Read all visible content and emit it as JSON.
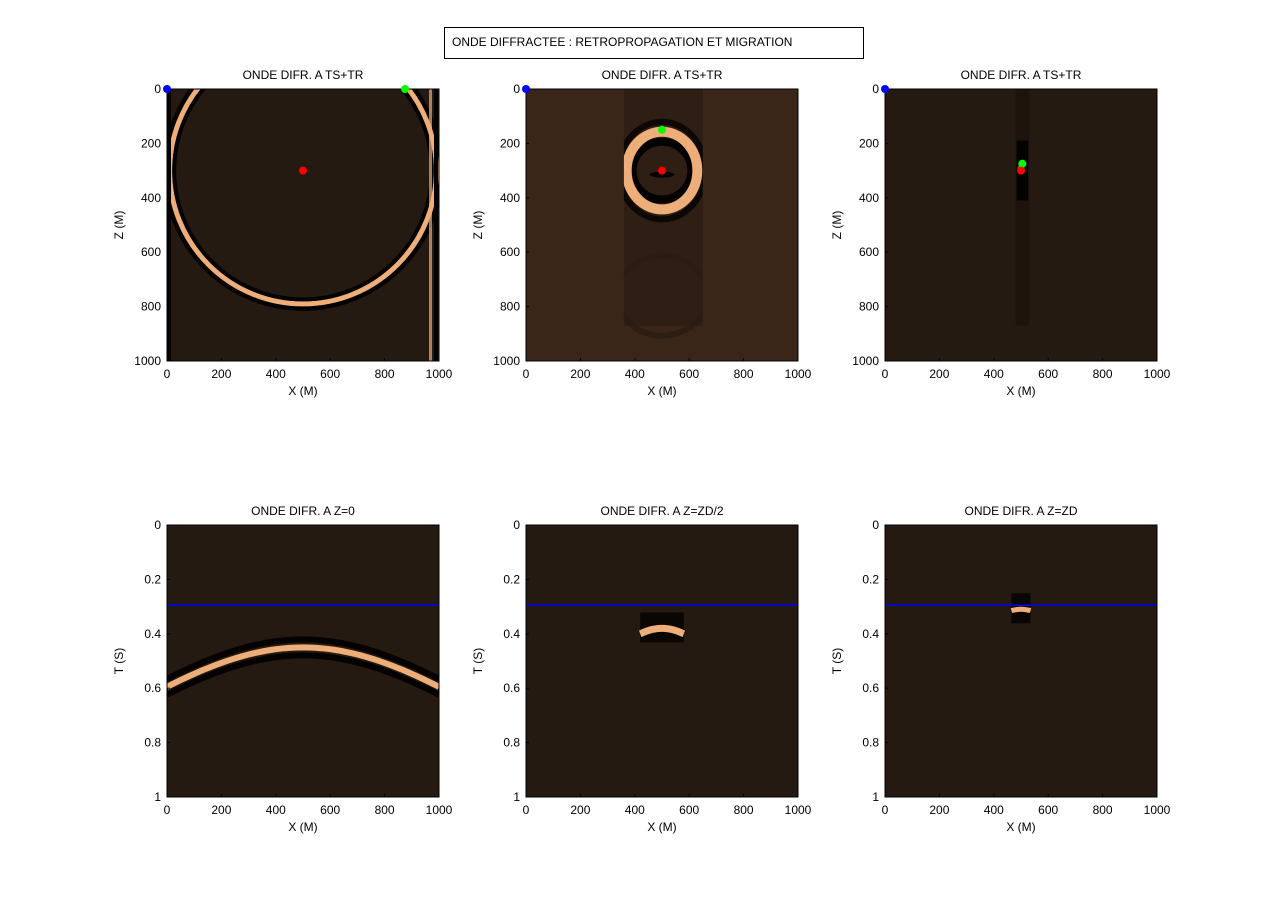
{
  "figure": {
    "title": "ONDE DIFFRACTEE : RETROPROPAGATION ET MIGRATION"
  },
  "colors": {
    "background": "#251A11",
    "top_mid_background": "#3A2619",
    "wave_bright": "#EDAE7A",
    "wave_dark": "#050302",
    "source_marker": "#0000FF",
    "receiver_marker": "#00FF00",
    "diffractor_marker": "#FF0000",
    "time_line": "#0000FF"
  },
  "chart_data": [
    {
      "type": "heatmap",
      "title": "ONDE DIFR. A TS+TR",
      "xlabel": "X (M)",
      "ylabel": "Z (M)",
      "xlim": [
        0,
        1000
      ],
      "ylim": [
        0,
        1000
      ],
      "y_reversed": true,
      "xticks": [
        "0",
        "200",
        "400",
        "600",
        "800",
        "1000"
      ],
      "yticks": [
        "0",
        "200",
        "400",
        "600",
        "800",
        "1000"
      ],
      "wavefront": {
        "shape": "circle",
        "center": [
          500,
          300
        ],
        "radius": 490
      },
      "markers": [
        {
          "name": "source",
          "x": 0,
          "z": 0
        },
        {
          "name": "receiver",
          "x": 875,
          "z": 0
        },
        {
          "name": "diffractor",
          "x": 500,
          "z": 300
        }
      ]
    },
    {
      "type": "heatmap",
      "title": "ONDE DIFR. A TS+TR",
      "xlabel": "X (M)",
      "ylabel": "Z (M)",
      "xlim": [
        0,
        1000
      ],
      "ylim": [
        0,
        1000
      ],
      "y_reversed": true,
      "xticks": [
        "0",
        "200",
        "400",
        "600",
        "800",
        "1000"
      ],
      "yticks": [
        "0",
        "200",
        "400",
        "600",
        "800",
        "1000"
      ],
      "aperture": [
        360,
        650
      ],
      "wavefront": {
        "shape": "ellipse",
        "center": [
          500,
          300
        ],
        "rx": 130,
        "rz": 150
      },
      "markers": [
        {
          "name": "source",
          "x": 0,
          "z": 0
        },
        {
          "name": "receiver",
          "x": 500,
          "z": 150
        },
        {
          "name": "diffractor",
          "x": 500,
          "z": 300
        }
      ]
    },
    {
      "type": "heatmap",
      "title": "ONDE DIFR. A TS+TR",
      "xlabel": "X (M)",
      "ylabel": "Z (M)",
      "xlim": [
        0,
        1000
      ],
      "ylim": [
        0,
        1000
      ],
      "y_reversed": true,
      "xticks": [
        "0",
        "200",
        "400",
        "600",
        "800",
        "1000"
      ],
      "yticks": [
        "0",
        "200",
        "400",
        "600",
        "800",
        "1000"
      ],
      "aperture": [
        480,
        530
      ],
      "wavefront": {
        "shape": "focus",
        "center": [
          500,
          300
        ],
        "rz": 40
      },
      "markers": [
        {
          "name": "source",
          "x": 0,
          "z": 0
        },
        {
          "name": "receiver",
          "x": 505,
          "z": 275
        },
        {
          "name": "diffractor",
          "x": 500,
          "z": 300
        }
      ]
    },
    {
      "type": "heatmap",
      "title": "ONDE DIFR.  A Z=0",
      "xlabel": "X (M)",
      "ylabel": "T (S)",
      "xlim": [
        0,
        1000
      ],
      "ylim": [
        0,
        1
      ],
      "y_reversed": true,
      "xticks": [
        "0",
        "200",
        "400",
        "600",
        "800",
        "1000"
      ],
      "yticks": [
        "0",
        "0.2",
        "0.4",
        "0.6",
        "0.8",
        "1"
      ],
      "hline_t": 0.295,
      "event": {
        "shape": "hyperbola",
        "x0": 500,
        "t0": 0.45,
        "t_edge": 0.595,
        "x_range": [
          0,
          1000
        ]
      }
    },
    {
      "type": "heatmap",
      "title": "ONDE DIFR.  A Z=ZD/2",
      "xlabel": "X (M)",
      "ylabel": "T (S)",
      "xlim": [
        0,
        1000
      ],
      "ylim": [
        0,
        1
      ],
      "y_reversed": true,
      "xticks": [
        "0",
        "200",
        "400",
        "600",
        "800",
        "1000"
      ],
      "yticks": [
        "0",
        "0.2",
        "0.4",
        "0.6",
        "0.8",
        "1"
      ],
      "hline_t": 0.295,
      "event": {
        "shape": "hyperbola",
        "x0": 500,
        "t0": 0.38,
        "t_edge": 0.4,
        "x_range": [
          420,
          580
        ]
      }
    },
    {
      "type": "heatmap",
      "title": "ONDE DIFR.  A Z=ZD",
      "xlabel": "X (M)",
      "ylabel": "T (S)",
      "xlim": [
        0,
        1000
      ],
      "ylim": [
        0,
        1
      ],
      "y_reversed": true,
      "xticks": [
        "0",
        "200",
        "400",
        "600",
        "800",
        "1000"
      ],
      "yticks": [
        "0",
        "0.2",
        "0.4",
        "0.6",
        "0.8",
        "1"
      ],
      "hline_t": 0.295,
      "event": {
        "shape": "hyperbola",
        "x0": 500,
        "t0": 0.31,
        "t_edge": 0.315,
        "x_range": [
          465,
          535
        ]
      }
    }
  ]
}
